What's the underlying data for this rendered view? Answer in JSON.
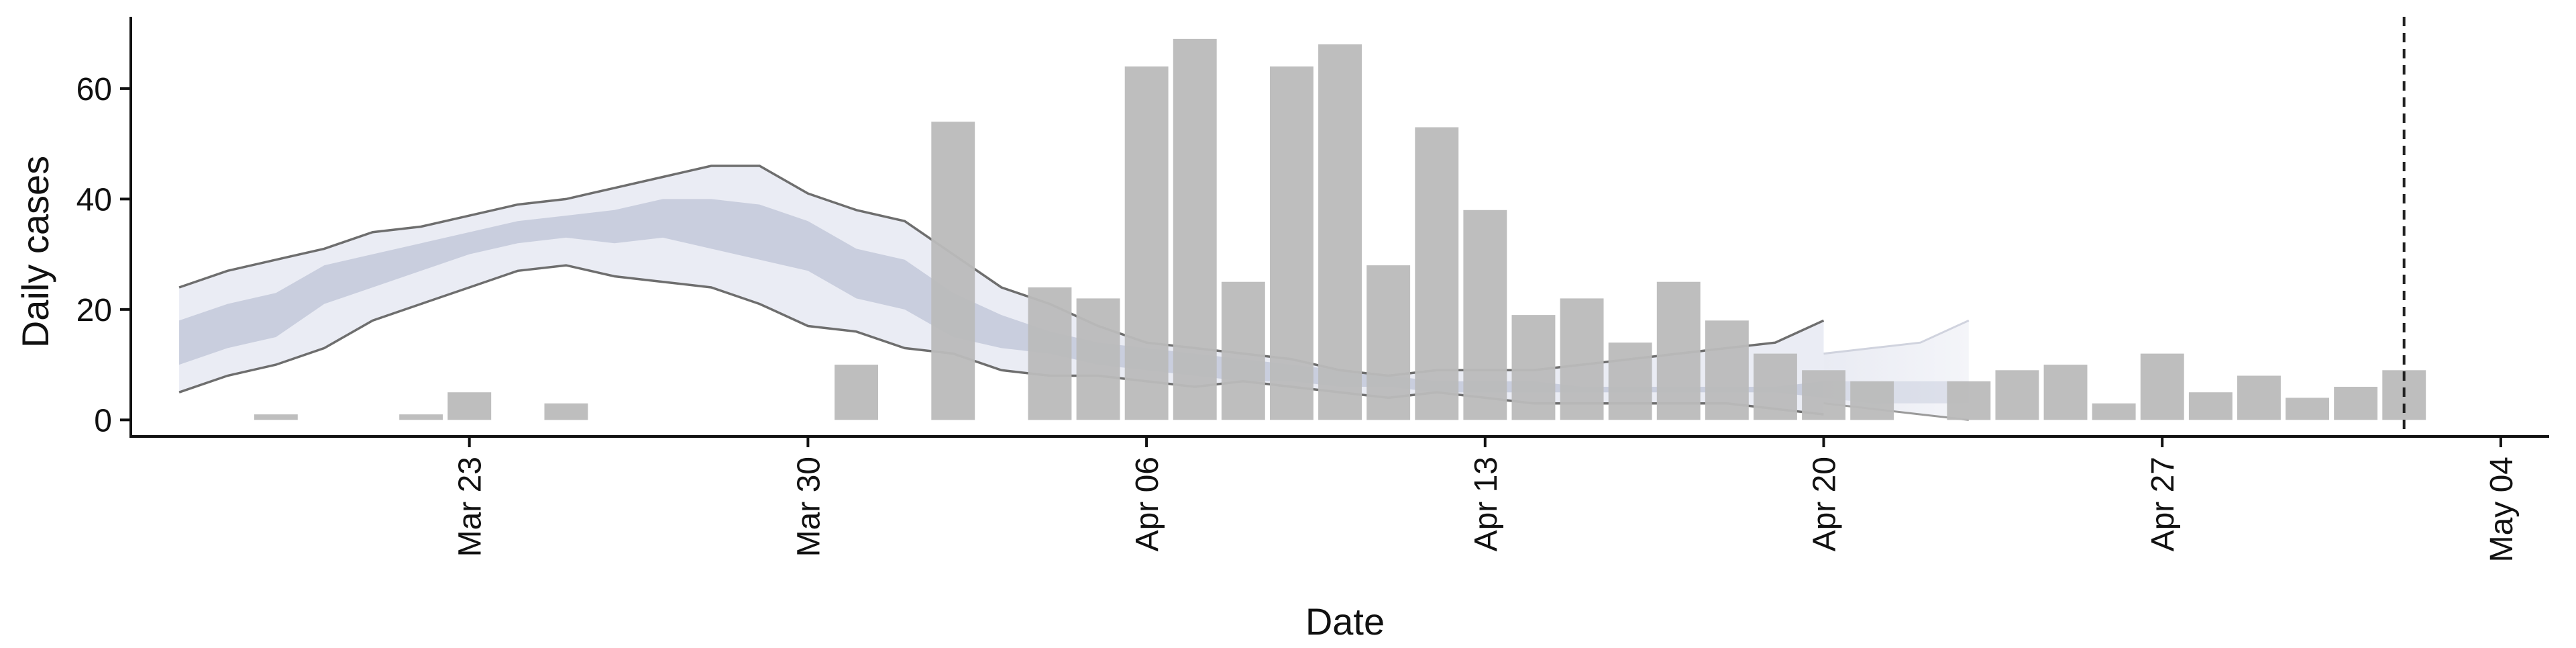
{
  "chart_data": {
    "type": "bar",
    "title": "",
    "xlabel": "Date",
    "ylabel": "Daily cases",
    "x_range": [
      "2020-03-16",
      "2020-05-05"
    ],
    "ylim": [
      -3,
      73
    ],
    "y_ticks": [
      0,
      20,
      40,
      60
    ],
    "x_ticks": [
      {
        "date": "2020-03-23",
        "label": "Mar 23"
      },
      {
        "date": "2020-03-30",
        "label": "Mar 30"
      },
      {
        "date": "2020-04-06",
        "label": "Apr 06"
      },
      {
        "date": "2020-04-13",
        "label": "Apr 13"
      },
      {
        "date": "2020-04-20",
        "label": "Apr 20"
      },
      {
        "date": "2020-04-27",
        "label": "Apr 27"
      },
      {
        "date": "2020-05-04",
        "label": "May 04"
      }
    ],
    "grid": false,
    "legend": "none",
    "colors": {
      "bars": "#bababa",
      "band_outer": "#e9ebf3",
      "band_inner": "#c5cbdc",
      "band_line": "#6e6e6e",
      "vline": "#222222",
      "axis": "#111111"
    },
    "vertical_line": {
      "date": "2020-05-02",
      "style": "dashed"
    },
    "series": [
      {
        "type": "bar",
        "x": [
          "2020-03-18",
          "2020-03-19",
          "2020-03-20",
          "2020-03-21",
          "2020-03-22",
          "2020-03-23",
          "2020-03-24",
          "2020-03-25",
          "2020-03-26",
          "2020-03-27",
          "2020-03-28",
          "2020-03-29",
          "2020-03-30",
          "2020-03-31",
          "2020-04-01",
          "2020-04-02",
          "2020-04-03",
          "2020-04-04",
          "2020-04-05",
          "2020-04-06",
          "2020-04-07",
          "2020-04-08",
          "2020-04-09",
          "2020-04-10",
          "2020-04-11",
          "2020-04-12",
          "2020-04-13",
          "2020-04-14",
          "2020-04-15",
          "2020-04-16",
          "2020-04-17",
          "2020-04-18",
          "2020-04-19",
          "2020-04-20",
          "2020-04-21",
          "2020-04-22",
          "2020-04-23",
          "2020-04-24",
          "2020-04-25",
          "2020-04-26",
          "2020-04-27",
          "2020-04-28",
          "2020-04-29",
          "2020-04-30",
          "2020-05-01",
          "2020-05-02"
        ],
        "values": [
          0,
          1,
          0,
          0,
          1,
          5,
          0,
          3,
          0,
          0,
          0,
          0,
          0,
          10,
          0,
          54,
          0,
          24,
          22,
          64,
          69,
          25,
          64,
          68,
          28,
          53,
          38,
          19,
          22,
          14,
          25,
          18,
          12,
          9,
          7,
          0,
          7,
          9,
          10,
          3,
          12,
          5,
          8,
          4,
          6,
          9
        ]
      },
      {
        "type": "band",
        "name": "outer",
        "x": [
          "2020-03-17",
          "2020-03-18",
          "2020-03-19",
          "2020-03-20",
          "2020-03-21",
          "2020-03-22",
          "2020-03-23",
          "2020-03-24",
          "2020-03-25",
          "2020-03-26",
          "2020-03-27",
          "2020-03-28",
          "2020-03-29",
          "2020-03-30",
          "2020-03-31",
          "2020-04-01",
          "2020-04-02",
          "2020-04-03",
          "2020-04-04",
          "2020-04-05",
          "2020-04-06",
          "2020-04-07",
          "2020-04-08",
          "2020-04-09",
          "2020-04-10",
          "2020-04-11",
          "2020-04-12",
          "2020-04-13",
          "2020-04-14",
          "2020-04-15",
          "2020-04-16",
          "2020-04-17",
          "2020-04-18",
          "2020-04-19",
          "2020-04-20",
          "2020-04-21",
          "2020-04-22",
          "2020-04-23"
        ],
        "lower": [
          5,
          8,
          10,
          13,
          18,
          21,
          24,
          27,
          28,
          26,
          25,
          24,
          21,
          17,
          16,
          13,
          12,
          9,
          8,
          8,
          7,
          6,
          7,
          6,
          5,
          4,
          5,
          4,
          3,
          3,
          3,
          3,
          3,
          2,
          1,
          0,
          0,
          0
        ],
        "upper": [
          24,
          27,
          29,
          31,
          34,
          35,
          37,
          39,
          40,
          42,
          44,
          46,
          46,
          41,
          38,
          36,
          30,
          24,
          21,
          17,
          14,
          13,
          12,
          11,
          9,
          8,
          9,
          9,
          9,
          10,
          11,
          12,
          13,
          14,
          18,
          0,
          0,
          0
        ]
      },
      {
        "type": "band",
        "name": "inner",
        "x": [
          "2020-03-17",
          "2020-03-18",
          "2020-03-19",
          "2020-03-20",
          "2020-03-21",
          "2020-03-22",
          "2020-03-23",
          "2020-03-24",
          "2020-03-25",
          "2020-03-26",
          "2020-03-27",
          "2020-03-28",
          "2020-03-29",
          "2020-03-30",
          "2020-03-31",
          "2020-04-01",
          "2020-04-02",
          "2020-04-03",
          "2020-04-04",
          "2020-04-05",
          "2020-04-06",
          "2020-04-07",
          "2020-04-08",
          "2020-04-09",
          "2020-04-10",
          "2020-04-11",
          "2020-04-12",
          "2020-04-13",
          "2020-04-14",
          "2020-04-15",
          "2020-04-16",
          "2020-04-17",
          "2020-04-18",
          "2020-04-19",
          "2020-04-20",
          "2020-04-21",
          "2020-04-22",
          "2020-04-23"
        ],
        "lower": [
          10,
          13,
          15,
          21,
          24,
          27,
          30,
          32,
          33,
          32,
          33,
          31,
          29,
          27,
          22,
          20,
          15,
          13,
          12,
          10,
          9,
          8,
          7,
          7,
          6,
          6,
          5,
          5,
          5,
          5,
          5,
          5,
          5,
          5,
          4,
          3,
          3,
          3
        ],
        "upper": [
          18,
          21,
          23,
          28,
          30,
          32,
          34,
          36,
          37,
          38,
          40,
          40,
          39,
          36,
          31,
          29,
          23,
          19,
          16,
          14,
          13,
          12,
          11,
          10,
          9,
          8,
          7,
          7,
          7,
          6,
          6,
          6,
          6,
          6,
          7,
          7,
          7,
          7
        ]
      }
    ]
  }
}
